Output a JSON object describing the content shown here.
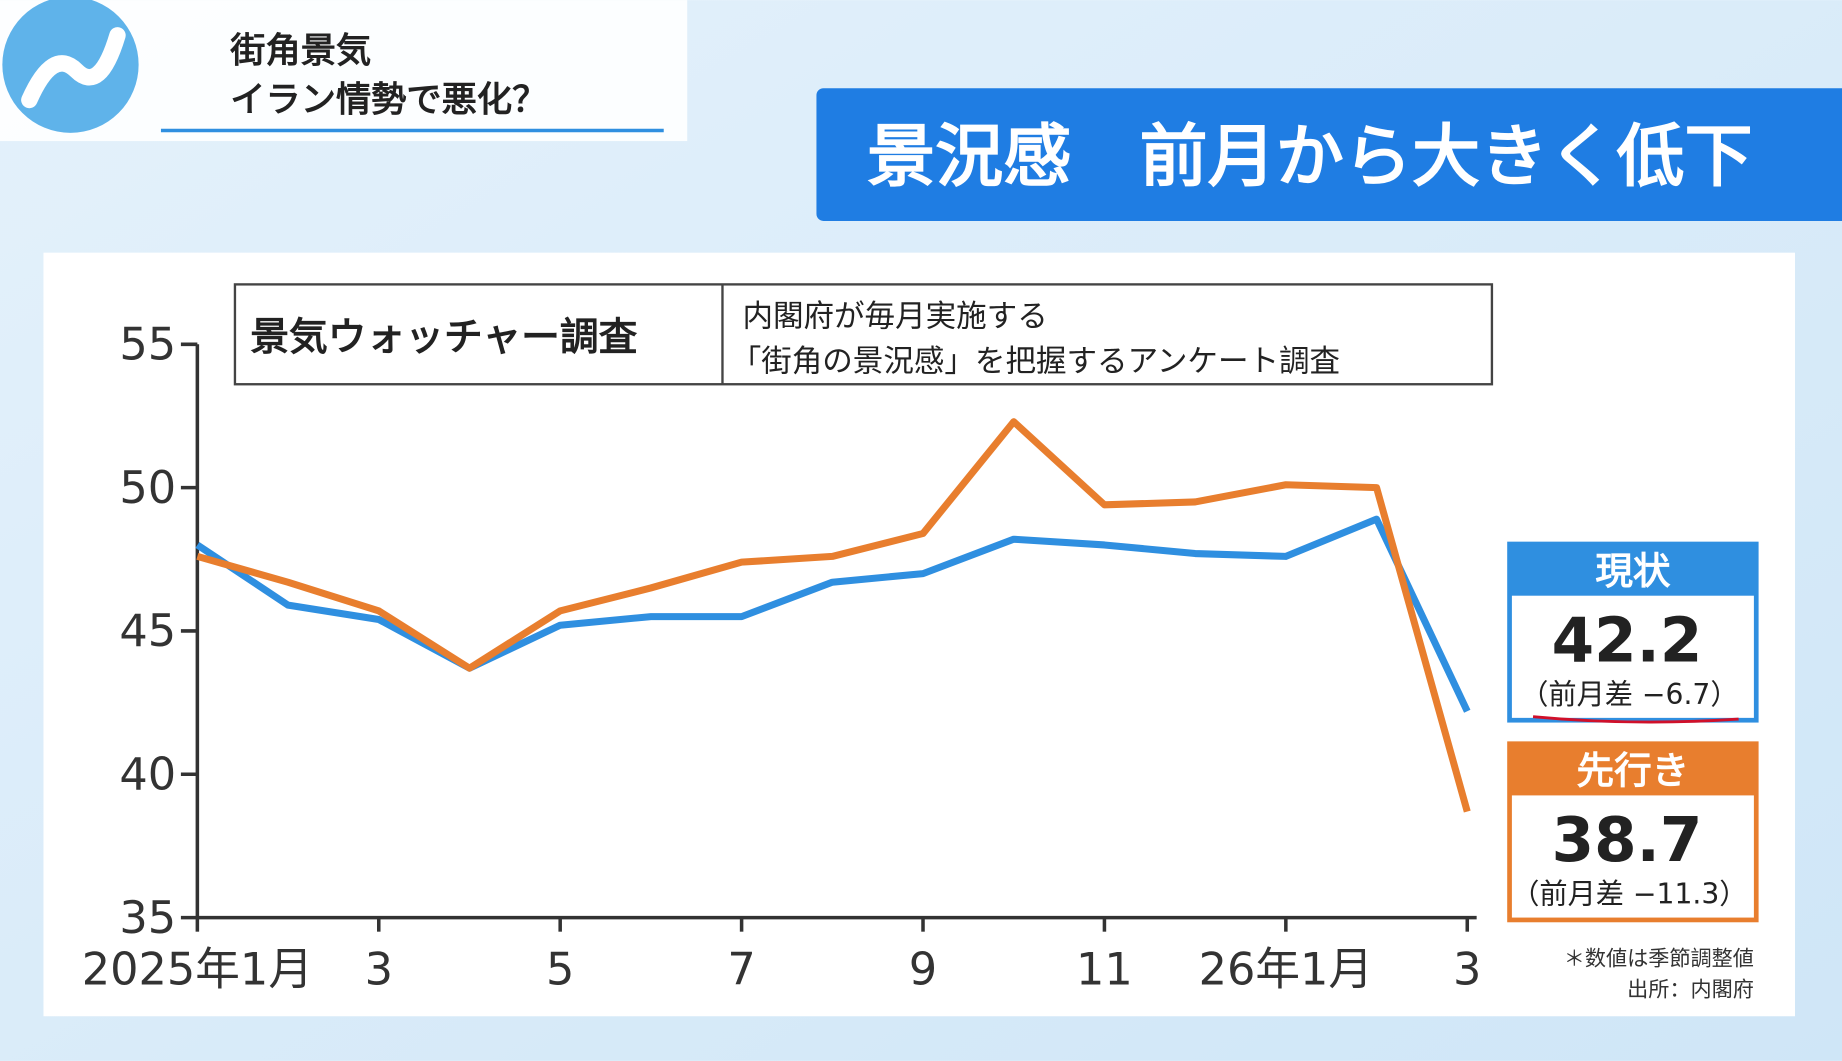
{
  "header": {
    "title": "街角景気",
    "subtitle": "イラン情勢で悪化？"
  },
  "banner": "景況感　前月から大きく低下",
  "chart_data": {
    "type": "line",
    "info_box": {
      "title": "景気ウォッチャー調査",
      "lines": [
        "内閣府が毎月実施する",
        "「街角の景況感」を把握するアンケート調査"
      ]
    },
    "categories": [
      "2025年1月",
      null,
      "3",
      null,
      "5",
      null,
      "7",
      null,
      "9",
      null,
      "11",
      null,
      "26年1月",
      null,
      "3"
    ],
    "series": [
      {
        "name": "現状",
        "color": "#2f8fe0",
        "values": [
          48.0,
          45.9,
          45.4,
          43.7,
          45.2,
          45.5,
          45.5,
          46.7,
          47.0,
          48.2,
          48.0,
          47.7,
          47.6,
          48.9,
          42.2
        ],
        "change_label": "（前月差 −6.7）"
      },
      {
        "name": "先行き",
        "color": "#e87e2e",
        "values": [
          47.6,
          46.7,
          45.7,
          43.7,
          45.7,
          46.5,
          47.4,
          47.6,
          48.4,
          52.3,
          49.4,
          49.5,
          50.1,
          50.0,
          38.7
        ],
        "change_label": "（前月差 −11.3）"
      }
    ],
    "ylim": [
      35,
      55
    ],
    "yticks": [
      35,
      40,
      45,
      50,
      55
    ],
    "notes": [
      "＊数値は季節調整値",
      "出所：内閣府"
    ]
  }
}
